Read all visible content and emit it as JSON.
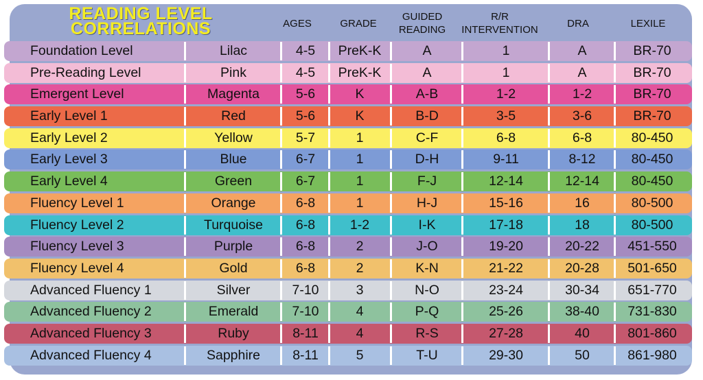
{
  "title_lines": [
    "READING LEVEL",
    "CORRELATIONS"
  ],
  "headers": {
    "ages": "AGES",
    "grade": "GRADE",
    "guided_reading": [
      "GUIDED",
      "READING"
    ],
    "rr_intervention": [
      "R/R",
      "INTERVENTION"
    ],
    "dra": "DRA",
    "lexile": "LEXILE"
  },
  "rows": [
    {
      "level": "Foundation Level",
      "color": "Lilac",
      "ages": "4-5",
      "grade": "PreK-K",
      "guided": "A",
      "rr": "1",
      "dra": "A",
      "lexile": "BR-70",
      "bg": "#c3a6d0"
    },
    {
      "level": "Pre-Reading Level",
      "color": "Pink",
      "ages": "4-5",
      "grade": "PreK-K",
      "guided": "A",
      "rr": "1",
      "dra": "A",
      "lexile": "BR-70",
      "bg": "#f3bcd6"
    },
    {
      "level": "Emergent Level",
      "color": "Magenta",
      "ages": "5-6",
      "grade": "K",
      "guided": "A-B",
      "rr": "1-2",
      "dra": "1-2",
      "lexile": "BR-70",
      "bg": "#e4539c"
    },
    {
      "level": "Early Level 1",
      "color": "Red",
      "ages": "5-6",
      "grade": "K",
      "guided": "B-D",
      "rr": "3-5",
      "dra": "3-6",
      "lexile": "BR-70",
      "bg": "#ec6a48"
    },
    {
      "level": "Early Level 2",
      "color": "Yellow",
      "ages": "5-7",
      "grade": "1",
      "guided": "C-F",
      "rr": "6-8",
      "dra": "6-8",
      "lexile": "80-450",
      "bg": "#fbef63"
    },
    {
      "level": "Early Level 3",
      "color": "Blue",
      "ages": "6-7",
      "grade": "1",
      "guided": "D-H",
      "rr": "9-11",
      "dra": "8-12",
      "lexile": "80-450",
      "bg": "#7d9bd6"
    },
    {
      "level": "Early Level 4",
      "color": "Green",
      "ages": "6-7",
      "grade": "1",
      "guided": "F-J",
      "rr": "12-14",
      "dra": "12-14",
      "lexile": "80-450",
      "bg": "#79bd5a"
    },
    {
      "level": "Fluency Level 1",
      "color": "Orange",
      "ages": "6-8",
      "grade": "1",
      "guided": "H-J",
      "rr": "15-16",
      "dra": "16",
      "lexile": "80-500",
      "bg": "#f5a361"
    },
    {
      "level": "Fluency Level 2",
      "color": "Turquoise",
      "ages": "6-8",
      "grade": "1-2",
      "guided": "I-K",
      "rr": "17-18",
      "dra": "18",
      "lexile": "80-500",
      "bg": "#3fbfcb"
    },
    {
      "level": "Fluency Level 3",
      "color": "Purple",
      "ages": "6-8",
      "grade": "2",
      "guided": "J-O",
      "rr": "19-20",
      "dra": "20-22",
      "lexile": "451-550",
      "bg": "#a58bc0"
    },
    {
      "level": "Fluency Level 4",
      "color": "Gold",
      "ages": "6-8",
      "grade": "2",
      "guided": "K-N",
      "rr": "21-22",
      "dra": "20-28",
      "lexile": "501-650",
      "bg": "#f1c16c"
    },
    {
      "level": "Advanced Fluency 1",
      "color": "Silver",
      "ages": "7-10",
      "grade": "3",
      "guided": "N-O",
      "rr": "23-24",
      "dra": "30-34",
      "lexile": "651-770",
      "bg": "#d5d8de"
    },
    {
      "level": "Advanced Fluency 2",
      "color": "Emerald",
      "ages": "7-10",
      "grade": "4",
      "guided": "P-Q",
      "rr": "25-26",
      "dra": "38-40",
      "lexile": "731-830",
      "bg": "#8ec29e"
    },
    {
      "level": "Advanced Fluency 3",
      "color": "Ruby",
      "ages": "8-11",
      "grade": "4",
      "guided": "R-S",
      "rr": "27-28",
      "dra": "40",
      "lexile": "801-860",
      "bg": "#c5586e"
    },
    {
      "level": "Advanced Fluency 4",
      "color": "Sapphire",
      "ages": "8-11",
      "grade": "5",
      "guided": "T-U",
      "rr": "29-30",
      "dra": "50",
      "lexile": "861-980",
      "bg": "#a9c0e2"
    }
  ]
}
